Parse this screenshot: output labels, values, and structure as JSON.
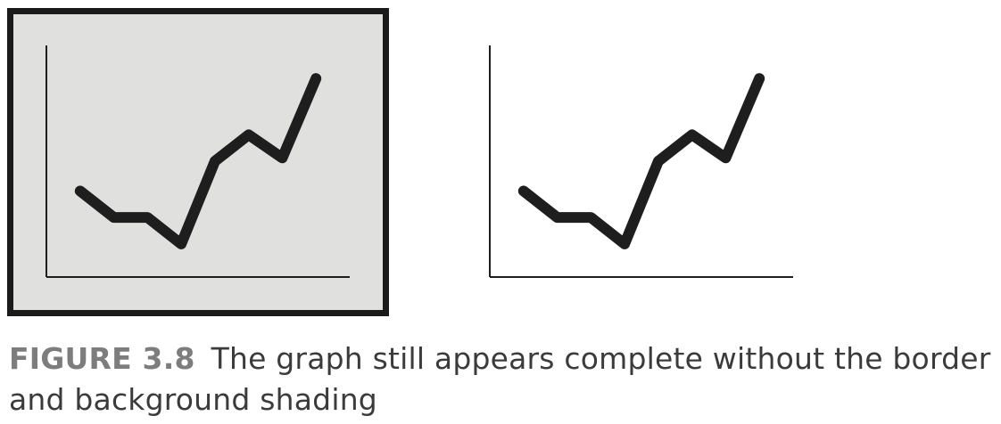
{
  "caption": {
    "label": "FIGURE 3.8",
    "text": "The graph still appears complete without the border and background shading"
  },
  "colors": {
    "framed_background": "#e0e0df",
    "frame_border": "#1a1a1a",
    "line": "#1e1e1e",
    "axis": "#1e1e1e",
    "plain_background": "#fefefc"
  },
  "chart_data": [
    {
      "type": "line",
      "panel": "with border and background shading",
      "x": [
        1,
        2,
        3,
        4,
        5,
        6,
        7,
        8
      ],
      "series": [
        {
          "values": [
            2.1,
            1.3,
            1.3,
            0.5,
            3.0,
            3.8,
            3.1,
            5.5
          ]
        }
      ],
      "xlim": [
        0,
        9
      ],
      "ylim": [
        -0.5,
        6.5
      ],
      "border": true,
      "background_shading": true,
      "grid": false,
      "legend": "none"
    },
    {
      "type": "line",
      "panel": "without border and background shading",
      "x": [
        1,
        2,
        3,
        4,
        5,
        6,
        7,
        8
      ],
      "series": [
        {
          "values": [
            2.1,
            1.3,
            1.3,
            0.5,
            3.0,
            3.8,
            3.1,
            5.5
          ]
        }
      ],
      "xlim": [
        0,
        9
      ],
      "ylim": [
        -0.5,
        6.5
      ],
      "border": false,
      "background_shading": false,
      "grid": false,
      "legend": "none"
    }
  ]
}
